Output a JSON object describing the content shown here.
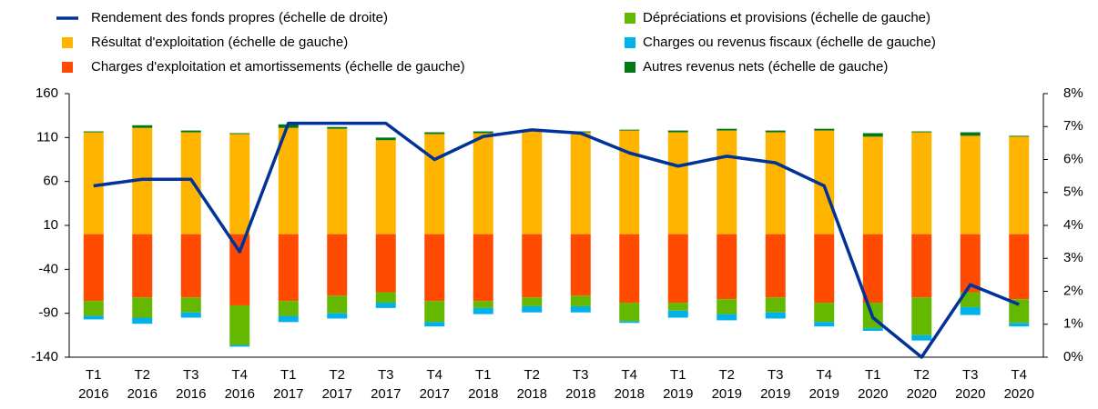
{
  "chart_data": {
    "type": "bar",
    "categories": [
      "T1 2016",
      "T2 2016",
      "T3 2016",
      "T4 2016",
      "T1 2017",
      "T2 2017",
      "T3 2017",
      "T4 2017",
      "T1 2018",
      "T2 2018",
      "T3 2018",
      "T4 2018",
      "T1 2019",
      "T2 2019",
      "T3 2019",
      "T4 2019",
      "T1 2020",
      "T2 2020",
      "T3 2020",
      "T4 2020"
    ],
    "ylim": [
      -140,
      160
    ],
    "yticks": [
      160,
      110,
      60,
      10,
      -40,
      -90,
      -140
    ],
    "y2lim": [
      0,
      8
    ],
    "y2ticks": [
      {
        "value": 8,
        "label": "8%"
      },
      {
        "value": 7,
        "label": "7%"
      },
      {
        "value": 6,
        "label": "6%"
      },
      {
        "value": 5,
        "label": "5%"
      },
      {
        "value": 4,
        "label": "4%"
      },
      {
        "value": 3,
        "label": "3%"
      },
      {
        "value": 2,
        "label": "2%"
      },
      {
        "value": 1,
        "label": "1%"
      },
      {
        "value": 0,
        "label": "0%"
      }
    ],
    "series": [
      {
        "name": "Rendement des fonds propres (échelle de droite)",
        "type": "line",
        "axis": "y2",
        "color": "#003299",
        "values": [
          5.2,
          5.4,
          5.4,
          3.2,
          7.1,
          7.1,
          7.1,
          6.0,
          6.7,
          6.9,
          6.8,
          6.2,
          5.8,
          6.1,
          5.9,
          5.2,
          1.2,
          0.0,
          2.2,
          1.6
        ]
      },
      {
        "name": "Résultat d'exploitation (échelle de gauche)",
        "color": "#FFB400",
        "values": [
          116,
          121,
          116,
          114,
          121,
          120,
          107,
          114,
          115,
          117,
          116,
          118,
          116,
          118,
          116,
          118,
          111,
          116,
          112,
          111
        ]
      },
      {
        "name": "Charges d'exploitation et amortissements (échelle de gauche)",
        "color": "#FF4B00",
        "values": [
          -76,
          -72,
          -72,
          -81,
          -76,
          -70,
          -66,
          -76,
          -76,
          -72,
          -70,
          -78,
          -78,
          -74,
          -72,
          -78,
          -78,
          -72,
          -66,
          -74
        ]
      },
      {
        "name": "Dépréciations et provisions (échelle de gauche)",
        "color": "#65B800",
        "values": [
          -17,
          -23,
          -17,
          -45,
          -17,
          -20,
          -12,
          -24,
          -8,
          -10,
          -12,
          -21,
          -9,
          -17,
          -17,
          -22,
          -29,
          -43,
          -17,
          -27
        ]
      },
      {
        "name": "Charges ou revenus fiscaux (échelle de gauche)",
        "color": "#00B1EA",
        "values": [
          -4,
          -7,
          -6,
          -2,
          -7,
          -6,
          -6,
          -5,
          -7,
          -7,
          -7,
          -2,
          -8,
          -7,
          -7,
          -5,
          -3,
          -6,
          -9,
          -4
        ]
      },
      {
        "name": "Autres revenus nets (échelle de gauche)",
        "color": "#007816",
        "values": [
          1,
          3,
          2,
          1,
          4,
          2,
          3,
          2,
          2,
          1,
          1,
          1,
          2,
          2,
          2,
          2,
          4,
          1,
          4,
          1
        ]
      }
    ]
  }
}
